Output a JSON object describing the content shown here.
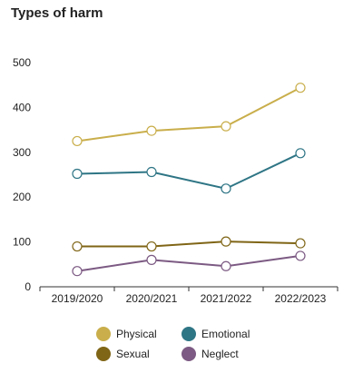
{
  "chart_data": {
    "type": "line",
    "title": "Types of harm",
    "xlabel": "",
    "ylabel": "",
    "categories": [
      "2019/2020",
      "2020/2021",
      "2021/2022",
      "2022/2023"
    ],
    "ylim": [
      0,
      500
    ],
    "yticks": [
      0,
      100,
      200,
      300,
      400,
      500
    ],
    "grid": false,
    "legend_position": "bottom",
    "series": [
      {
        "name": "Physical",
        "color": "#C9AE4B",
        "values": [
          325,
          348,
          358,
          444
        ]
      },
      {
        "name": "Emotional",
        "color": "#2E7585",
        "values": [
          252,
          256,
          219,
          298
        ]
      },
      {
        "name": "Sexual",
        "color": "#7F6516",
        "values": [
          90,
          90,
          101,
          97
        ]
      },
      {
        "name": "Neglect",
        "color": "#7C5A83",
        "values": [
          35,
          60,
          46,
          69
        ]
      }
    ]
  }
}
